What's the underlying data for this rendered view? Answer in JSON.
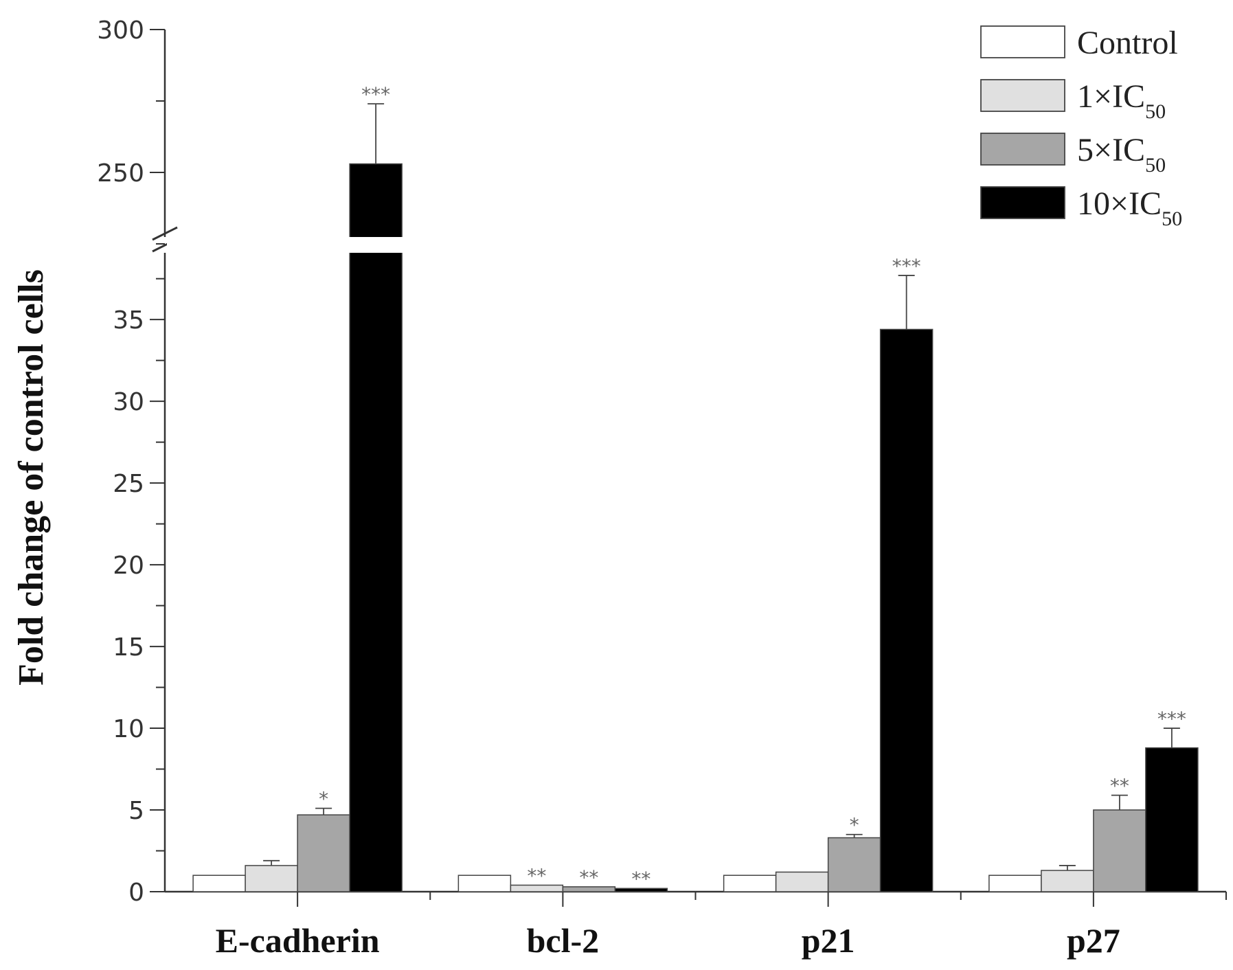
{
  "chart_data": {
    "type": "bar",
    "title": "",
    "xlabel": "",
    "ylabel": "Fold change of control cells",
    "categories": [
      "E-cadherin",
      "bcl-2",
      "p21",
      "p27"
    ],
    "series": [
      {
        "name": "Control",
        "legend_main": "Control",
        "legend_sub": "",
        "color": "#ffffff",
        "values": [
          1.0,
          1.0,
          1.0,
          1.0
        ],
        "errors": [
          0,
          0,
          0,
          0
        ],
        "sig": [
          "",
          "",
          "",
          ""
        ]
      },
      {
        "name": "1×IC50",
        "legend_main": "1×IC",
        "legend_sub": "50",
        "color": "#e0e0e0",
        "values": [
          1.6,
          0.4,
          1.2,
          1.3
        ],
        "errors": [
          0.3,
          0,
          0,
          0.3
        ],
        "sig": [
          "",
          "**",
          "",
          ""
        ]
      },
      {
        "name": "5×IC50",
        "legend_main": "5×IC",
        "legend_sub": "50",
        "color": "#a6a6a6",
        "values": [
          4.7,
          0.3,
          3.3,
          5.0
        ],
        "errors": [
          0.4,
          0,
          0.2,
          0.9
        ],
        "sig": [
          "*",
          "**",
          "*",
          "**"
        ]
      },
      {
        "name": "10×IC50",
        "legend_main": "10×IC",
        "legend_sub": "50",
        "color": "#000000",
        "values": [
          253,
          0.2,
          34.4,
          8.8
        ],
        "errors": [
          21,
          0,
          3.3,
          1.2
        ],
        "sig": [
          "***",
          "**",
          "***",
          "***"
        ]
      }
    ],
    "y_axis_lower": {
      "range": [
        0,
        39
      ],
      "ticks": [
        0,
        5,
        10,
        15,
        20,
        25,
        30,
        35
      ],
      "minor_step": 2.5
    },
    "y_axis_upper": {
      "range": [
        225,
        300
      ],
      "ticks": [
        250,
        300
      ],
      "minor_step": 25
    },
    "axis_break": true,
    "grid": false,
    "legend_position": "top-right"
  }
}
